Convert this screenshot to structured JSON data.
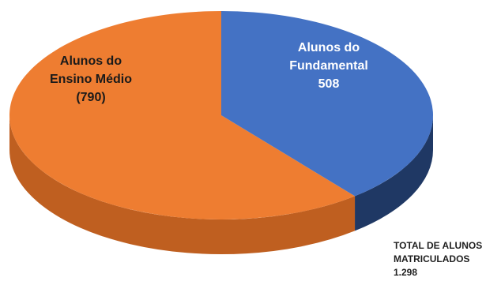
{
  "chart_data": {
    "type": "pie",
    "title": "",
    "style": "3d",
    "legend": "none",
    "slices": [
      {
        "name": "Alunos do Ensino Médio",
        "value": 790,
        "color": "#ee7d31",
        "side_color": "#bf5f20",
        "label_lines": [
          "Alunos do",
          "Ensino Médio",
          "(790)"
        ],
        "label_color": "#1a1a1a"
      },
      {
        "name": "Alunos do Fundamental",
        "value": 508,
        "color": "#4472c4",
        "side_color": "#1f3864",
        "label_lines": [
          "Alunos do",
          "Fundamental",
          "508"
        ],
        "label_color": "#ffffff"
      }
    ],
    "annotation": {
      "lines": [
        "TOTAL DE ALUNOS",
        "MATRICULADOS",
        "1.298"
      ]
    }
  }
}
